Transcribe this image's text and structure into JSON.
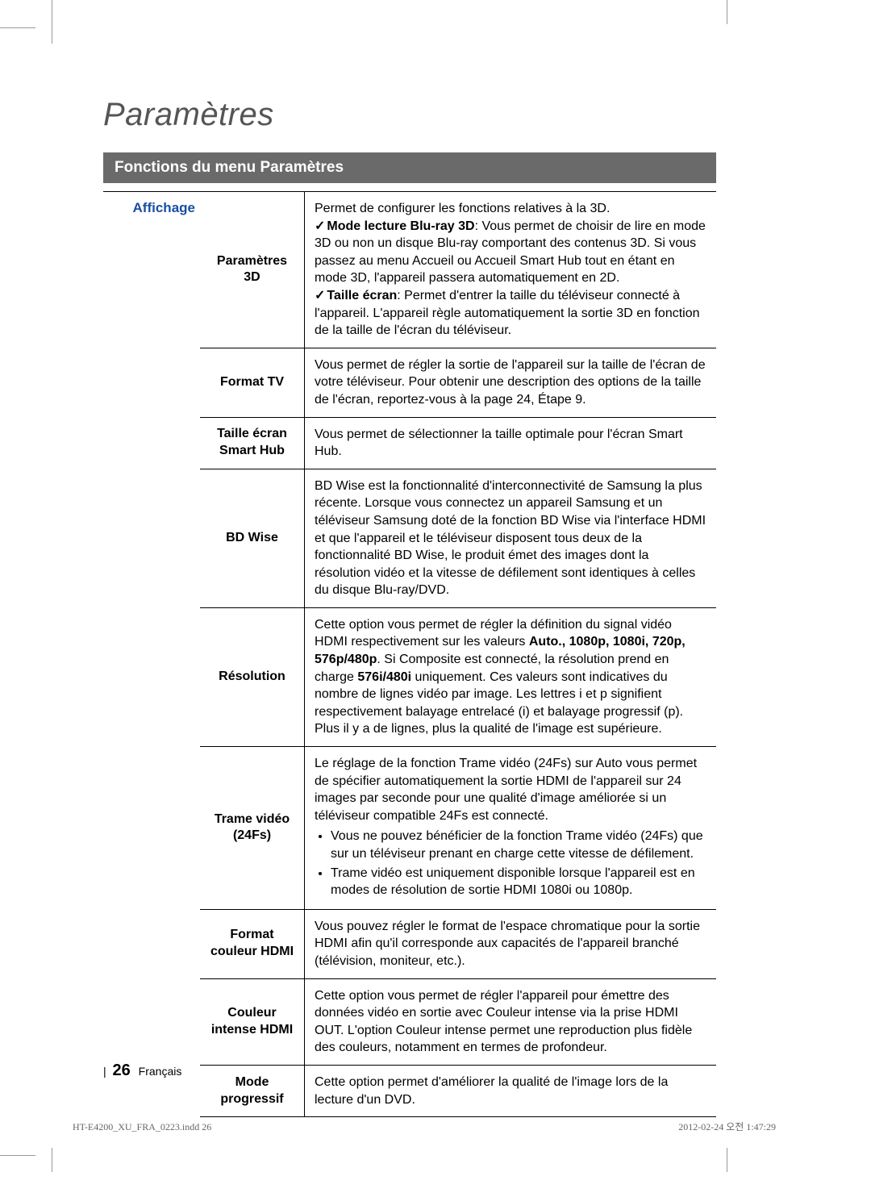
{
  "page": {
    "title": "Paramètres",
    "subtitle": "Fonctions du menu Paramètres",
    "section_label": "Affichage",
    "page_number": "26",
    "page_lang": "Français",
    "print_left": "HT-E4200_XU_FRA_0223.indd   26",
    "print_right": "2012-02-24   오전 1:47:29"
  },
  "rows": {
    "r0": {
      "label": "Paramètres 3D",
      "intro": "Permet de configurer les fonctions relatives à la 3D.",
      "check1_b": "Mode lecture Blu-ray 3D",
      "check1_rest": ": Vous permet de choisir de lire en mode 3D ou non un disque Blu-ray comportant des contenus 3D. Si vous passez au menu Accueil ou Accueil Smart Hub tout en étant en mode 3D, l'appareil passera automatiquement en 2D.",
      "check2_b": "Taille écran",
      "check2_rest": ": Permet d'entrer la taille du téléviseur connecté à l'appareil. L'appareil règle automatiquement la sortie 3D en fonction de la taille de l'écran du téléviseur."
    },
    "r1": {
      "label": "Format TV",
      "desc": "Vous permet de régler la sortie de l'appareil sur la taille de l'écran de votre téléviseur. Pour obtenir une description des options de la taille de l'écran, reportez-vous à la page 24, Étape 9."
    },
    "r2": {
      "label": "Taille écran Smart Hub",
      "desc": "Vous permet de sélectionner la taille optimale pour l'écran Smart Hub."
    },
    "r3": {
      "label": "BD Wise",
      "desc": "BD Wise est la fonctionnalité d'interconnectivité de Samsung la plus récente. Lorsque vous connectez un appareil Samsung et un téléviseur Samsung doté de la fonction BD Wise via l'interface HDMI et que l'appareil et le téléviseur disposent tous deux de la fonctionnalité BD Wise, le produit émet des images dont la résolution vidéo et la vitesse de défilement sont identiques à celles du disque Blu-ray/DVD."
    },
    "r4": {
      "label": "Résolution",
      "pre": "Cette option vous permet de régler la définition du signal vidéo HDMI respectivement sur les valeurs ",
      "b1": "Auto., 1080p, 1080i, 720p, 576p/480p",
      "mid": ". Si Composite est connecté, la résolution prend en charge ",
      "b2": "576i/480i",
      "post": " uniquement. Ces valeurs sont indicatives du nombre de lignes vidéo par image. Les lettres i et p signifient respectivement balayage entrelacé (i) et balayage progressif (p). Plus il y a de lignes, plus la qualité de l'image est supérieure."
    },
    "r5": {
      "label": "Trame vidéo (24Fs)",
      "intro": "Le réglage de la fonction Trame vidéo (24Fs) sur Auto vous permet de spécifier automatiquement la sortie HDMI de l'appareil sur 24 images par seconde pour une qualité d'image améliorée si un téléviseur compatible 24Fs est connecté.",
      "li1": "Vous ne pouvez bénéficier de la fonction Trame vidéo (24Fs) que sur un téléviseur prenant en charge cette vitesse de défilement.",
      "li2": "Trame vidéo est uniquement disponible lorsque l'appareil est en modes de résolution de sortie HDMI 1080i ou 1080p."
    },
    "r6": {
      "label": "Format couleur HDMI",
      "desc": "Vous pouvez régler le format de l'espace chromatique pour la sortie HDMI afin qu'il corresponde aux capacités de l'appareil branché (télévision, moniteur, etc.)."
    },
    "r7": {
      "label": "Couleur intense HDMI",
      "desc": "Cette option vous permet de régler l'appareil pour émettre des données vidéo en sortie avec Couleur intense via la prise HDMI OUT. L'option Couleur intense permet une reproduction plus fidèle des couleurs, notamment en termes de profondeur."
    },
    "r8": {
      "label": "Mode progressif",
      "desc": "Cette option permet d'améliorer la qualité de l'image lors de la lecture d'un DVD."
    }
  }
}
